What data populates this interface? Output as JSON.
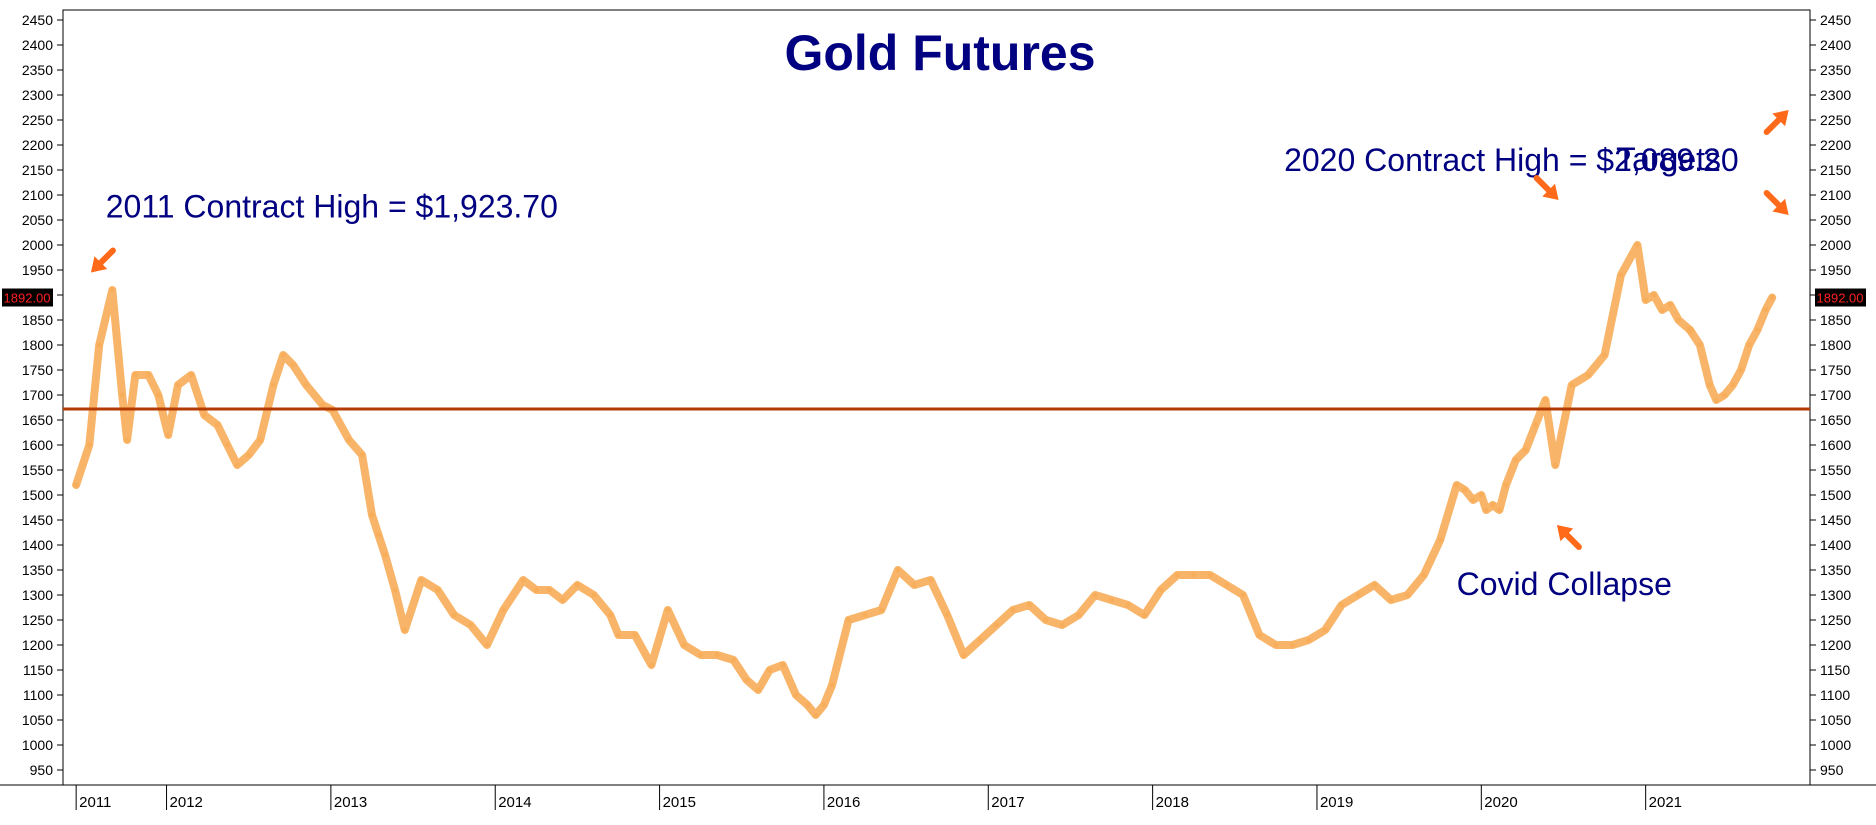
{
  "chart_data": {
    "type": "line",
    "title": "Gold Futures",
    "y_axis": {
      "range": [
        920,
        2470
      ],
      "ticks": [
        950,
        1000,
        1050,
        1100,
        1150,
        1200,
        1250,
        1300,
        1350,
        1400,
        1450,
        1500,
        1550,
        1600,
        1650,
        1700,
        1750,
        1800,
        1850,
        1900,
        1950,
        2000,
        2050,
        2100,
        2150,
        2200,
        2250,
        2300,
        2350,
        2400,
        2450
      ]
    },
    "x_axis": {
      "range": [
        2010.92,
        2021.55
      ],
      "ticks": [
        {
          "label": "2011",
          "value": 2011.0
        },
        {
          "label": "2012",
          "value": 2011.55
        },
        {
          "label": "2013",
          "value": 2012.55
        },
        {
          "label": "2014",
          "value": 2013.55
        },
        {
          "label": "2015",
          "value": 2014.55
        },
        {
          "label": "2016",
          "value": 2015.55
        },
        {
          "label": "2017",
          "value": 2016.55
        },
        {
          "label": "2018",
          "value": 2017.55
        },
        {
          "label": "2019",
          "value": 2018.55
        },
        {
          "label": "2020",
          "value": 2019.55
        },
        {
          "label": "2021",
          "value": 2020.55
        }
      ]
    },
    "current_price_label": "1892.00",
    "support_level": 1672,
    "series": [
      {
        "color": "#f7ad59",
        "x": [
          2011.0,
          2011.08,
          2011.14,
          2011.22,
          2011.28,
          2011.31,
          2011.36,
          2011.44,
          2011.5,
          2011.56,
          2011.62,
          2011.7,
          2011.78,
          2011.86,
          2011.92,
          2011.98,
          2012.05,
          2012.12,
          2012.2,
          2012.26,
          2012.32,
          2012.4,
          2012.5,
          2012.56,
          2012.66,
          2012.74,
          2012.8,
          2012.84,
          2012.88,
          2012.94,
          2013.0,
          2013.1,
          2013.2,
          2013.3,
          2013.4,
          2013.5,
          2013.6,
          2013.72,
          2013.8,
          2013.88,
          2013.96,
          2014.05,
          2014.15,
          2014.25,
          2014.3,
          2014.4,
          2014.5,
          2014.6,
          2014.7,
          2014.8,
          2014.9,
          2015.0,
          2015.08,
          2015.15,
          2015.22,
          2015.3,
          2015.38,
          2015.45,
          2015.5,
          2015.55,
          2015.6,
          2015.7,
          2015.8,
          2015.9,
          2016.0,
          2016.1,
          2016.2,
          2016.3,
          2016.4,
          2016.5,
          2016.6,
          2016.7,
          2016.8,
          2016.9,
          2017.0,
          2017.1,
          2017.2,
          2017.3,
          2017.4,
          2017.5,
          2017.6,
          2017.7,
          2017.8,
          2017.9,
          2018.0,
          2018.1,
          2018.2,
          2018.3,
          2018.4,
          2018.5,
          2018.6,
          2018.7,
          2018.8,
          2018.9,
          2019.0,
          2019.1,
          2019.2,
          2019.3,
          2019.4,
          2019.45,
          2019.5,
          2019.55,
          2019.58,
          2019.62,
          2019.66,
          2019.7,
          2019.76,
          2019.82,
          2019.88,
          2019.94,
          2020.0,
          2020.1,
          2020.2,
          2020.3,
          2020.4,
          2020.5,
          2020.55,
          2020.6,
          2020.65,
          2020.7,
          2020.75,
          2020.82
        ],
        "y": [
          1520,
          1600,
          1800,
          1910,
          1700,
          1610,
          1740,
          1740,
          1700,
          1620,
          1720,
          1740,
          1660,
          1640,
          1600,
          1560,
          1580,
          1610,
          1720,
          1780,
          1760,
          1720,
          1680,
          1670,
          1610,
          1580,
          1460,
          1420,
          1380,
          1310,
          1230,
          1330,
          1310,
          1260,
          1240,
          1200,
          1270,
          1330,
          1310,
          1310,
          1290,
          1320,
          1300,
          1260,
          1220,
          1220,
          1160,
          1270,
          1200,
          1180,
          1180,
          1170,
          1130,
          1110,
          1150,
          1160,
          1100,
          1080,
          1060,
          1080,
          1120,
          1250,
          1260,
          1270,
          1350,
          1320,
          1330,
          1260,
          1180,
          1210,
          1240,
          1270,
          1280,
          1250,
          1240,
          1260,
          1300,
          1290,
          1280,
          1260,
          1310,
          1340,
          1340,
          1340,
          1320,
          1300,
          1220,
          1200,
          1200,
          1210,
          1230,
          1280,
          1300,
          1320,
          1290,
          1300,
          1340,
          1410,
          1520,
          1510,
          1490,
          1500,
          1470,
          1480,
          1470,
          1520,
          1570,
          1590,
          1640,
          1690,
          1560,
          1720,
          1740,
          1780,
          1940,
          2000,
          1890,
          1900,
          1870,
          1880,
          1850,
          1830
        ]
      },
      {
        "color": "#f7ad59",
        "x": [
          2020.82,
          2020.88,
          2020.94,
          2020.98,
          2021.03,
          2021.08,
          2021.13,
          2021.18,
          2021.23,
          2021.28,
          2021.32
        ],
        "y": [
          1830,
          1800,
          1720,
          1690,
          1700,
          1720,
          1750,
          1800,
          1830,
          1870,
          1895
        ]
      }
    ],
    "annotations": [
      {
        "text": "2011 Contract High = $1,923.70",
        "x": 2011.18,
        "y": 2055
      },
      {
        "text": "2020 Contract High = $2,089.20",
        "x": 2018.35,
        "y": 2148
      },
      {
        "text": "Targets",
        "x": 2020.37,
        "y": 2150
      },
      {
        "text": "Covid Collapse",
        "x": 2019.4,
        "y": 1300
      }
    ],
    "arrows": [
      {
        "x": 2011.09,
        "y": 1945,
        "direction": "down-left"
      },
      {
        "x": 2020.02,
        "y": 2090,
        "direction": "down-right"
      },
      {
        "x": 2020.01,
        "y": 1440,
        "direction": "up-left"
      },
      {
        "x": 2021.42,
        "y": 2270,
        "direction": "up-right"
      },
      {
        "x": 2021.42,
        "y": 2060,
        "direction": "down-right"
      }
    ]
  }
}
